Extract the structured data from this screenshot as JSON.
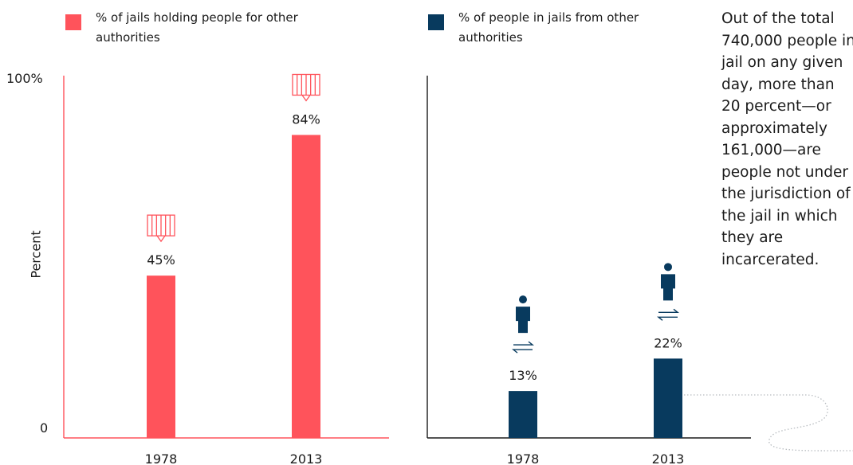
{
  "colors": {
    "red": "#ff535b",
    "navy": "#083a5e",
    "dotted": "#b8bcc0"
  },
  "legend": {
    "left_label": "% of jails holding people for other authorities",
    "right_label": "% of people in jails from other authorities"
  },
  "axis": {
    "top_label": "100%",
    "bottom_label": "0",
    "ylabel": "Percent"
  },
  "side_note": "Out of the total 740,000 people in jail on any given day, more than 20 percent—or approximately 161,000—are people not under the jurisdiction of the jail in which they are incarcerated.",
  "chart_data": [
    {
      "type": "bar",
      "categories": [
        "1978",
        "2013"
      ],
      "values": [
        45,
        84
      ],
      "value_labels": [
        "45%",
        "84%"
      ],
      "series_name": "% of jails holding people for other authorities",
      "ylabel": "Percent",
      "ylim": [
        0,
        100
      ],
      "color": "#ff535b",
      "icon": "jail-bars-icon"
    },
    {
      "type": "bar",
      "categories": [
        "1978",
        "2013"
      ],
      "values": [
        13,
        22
      ],
      "value_labels": [
        "13%",
        "22%"
      ],
      "series_name": "% of people in jails from other authorities",
      "ylim": [
        0,
        100
      ],
      "color": "#083a5e",
      "icon": "person-transfer-icon"
    }
  ]
}
